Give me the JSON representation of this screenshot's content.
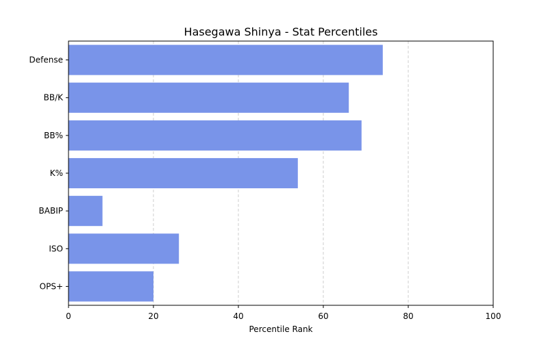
{
  "chart_data": {
    "type": "bar",
    "orientation": "horizontal",
    "title": "Hasegawa Shinya - Stat Percentiles",
    "xlabel": "Percentile Rank",
    "ylabel": "",
    "categories": [
      "Defense",
      "BB/K",
      "BB%",
      "K%",
      "BABIP",
      "ISO",
      "OPS+"
    ],
    "values": [
      74,
      66,
      69,
      54,
      8,
      26,
      20
    ],
    "xlim": [
      0,
      100
    ],
    "xticks": [
      "0",
      "20",
      "40",
      "60",
      "80",
      "100"
    ],
    "grid": "x-axis dashed",
    "bar_color": "#7994e9",
    "grid_color": "#cccccc"
  }
}
